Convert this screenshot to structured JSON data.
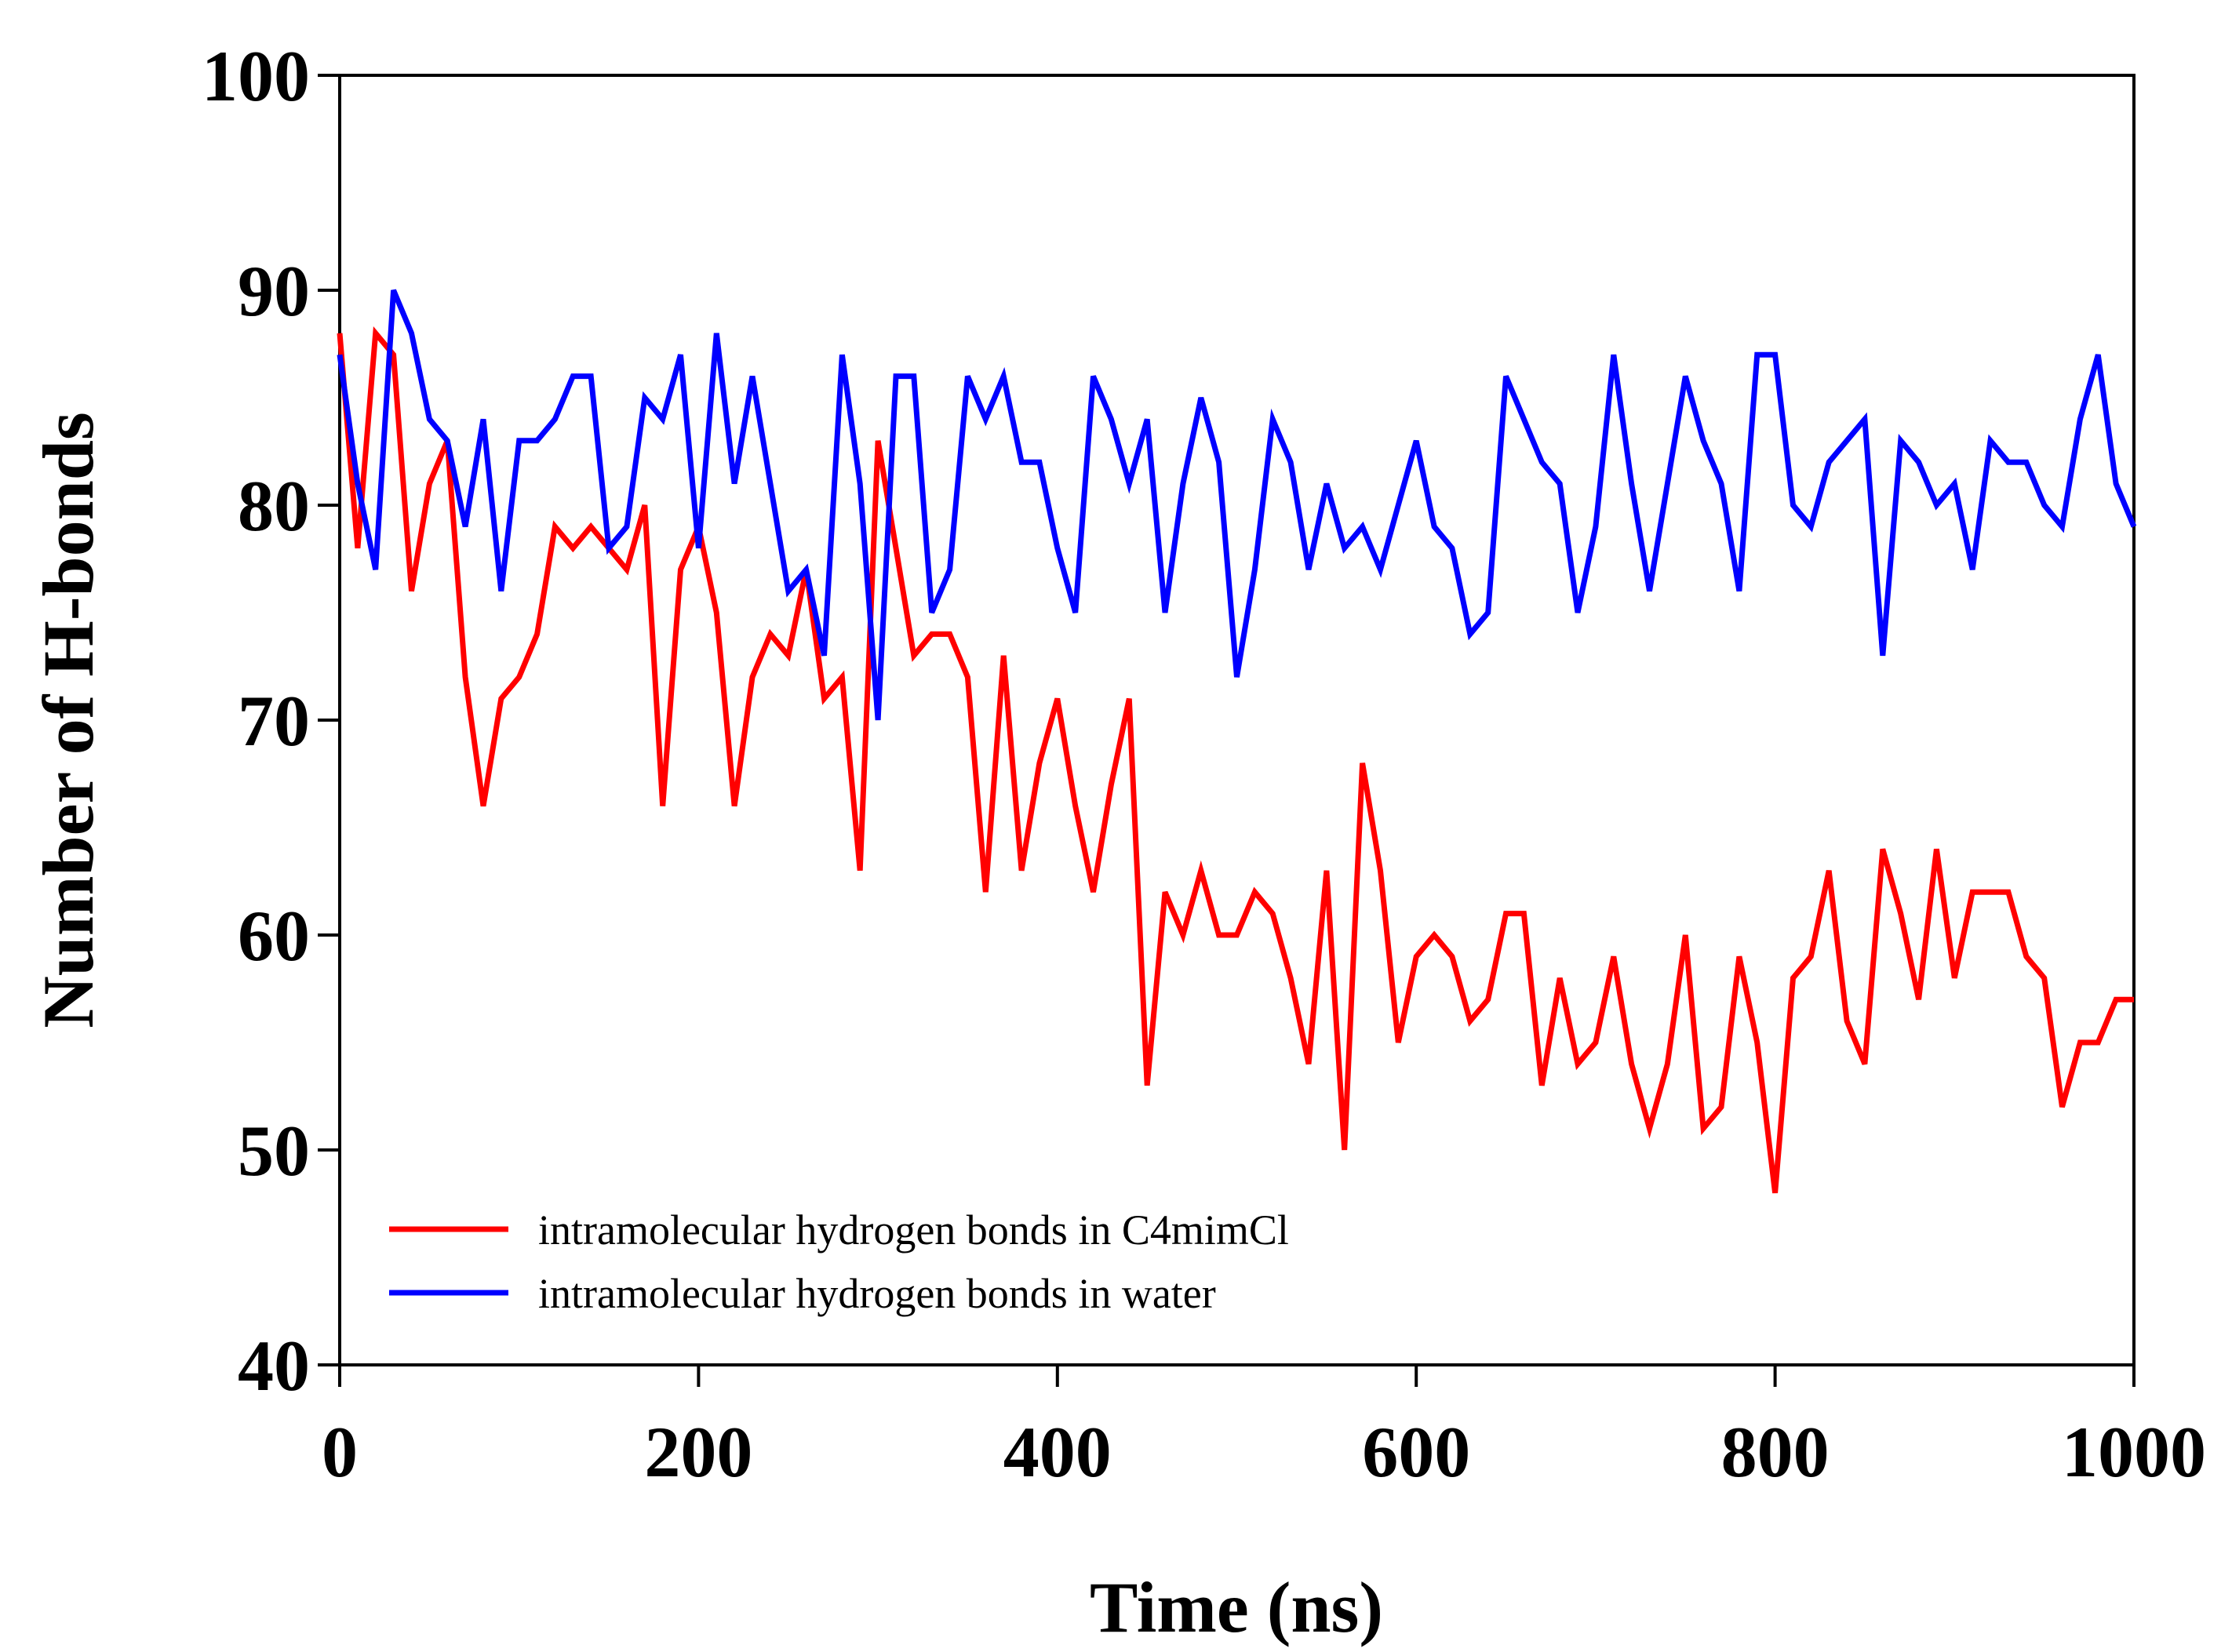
{
  "chart_data": {
    "type": "line",
    "title": "",
    "xlabel": "Time (ns)",
    "ylabel": "Number of H-bonds",
    "xlim": [
      0,
      1000
    ],
    "ylim": [
      40,
      100
    ],
    "xticks": [
      0,
      200,
      400,
      600,
      800,
      1000
    ],
    "yticks": [
      40,
      50,
      60,
      70,
      80,
      90,
      100
    ],
    "xtick_labels": [
      "0",
      "200",
      "400",
      "600",
      "800",
      "1000"
    ],
    "ytick_labels": [
      "40",
      "50",
      "60",
      "70",
      "80",
      "90",
      "100"
    ],
    "grid": false,
    "legend_position": "bottom-left",
    "x": [
      0,
      10,
      20,
      30,
      40,
      50,
      60,
      70,
      80,
      90,
      100,
      110,
      120,
      130,
      140,
      150,
      160,
      170,
      180,
      190,
      200,
      210,
      220,
      230,
      240,
      250,
      260,
      270,
      280,
      290,
      300,
      310,
      320,
      330,
      340,
      350,
      360,
      370,
      380,
      390,
      400,
      410,
      420,
      430,
      440,
      450,
      460,
      470,
      480,
      490,
      500,
      510,
      520,
      530,
      540,
      550,
      560,
      570,
      580,
      590,
      600,
      610,
      620,
      630,
      640,
      650,
      660,
      670,
      680,
      690,
      700,
      710,
      720,
      730,
      740,
      750,
      760,
      770,
      780,
      790,
      800,
      810,
      820,
      830,
      840,
      850,
      860,
      870,
      880,
      890,
      900,
      910,
      920,
      930,
      940,
      950,
      960,
      970,
      980,
      990,
      1000
    ],
    "series": [
      {
        "name": "intramolecular hydrogen bonds  in C4mimCl",
        "color": "#ff0000",
        "values": [
          88,
          78,
          88,
          87,
          76,
          81,
          83,
          72,
          66,
          71,
          72,
          74,
          79,
          78,
          79,
          78,
          77,
          80,
          66,
          77,
          79,
          75,
          66,
          72,
          74,
          73,
          77,
          71,
          72,
          63,
          83,
          78,
          73,
          74,
          74,
          72,
          62,
          73,
          63,
          68,
          71,
          66,
          62,
          67,
          71,
          53,
          62,
          60,
          63,
          60,
          60,
          62,
          61,
          58,
          54,
          63,
          50,
          68,
          63,
          55,
          59,
          60,
          59,
          56,
          57,
          61,
          61,
          53,
          58,
          54,
          55,
          59,
          54,
          51,
          54,
          60,
          51,
          52,
          59,
          55,
          48,
          58,
          59,
          63,
          56,
          54,
          64,
          61,
          57,
          64,
          58,
          62,
          62,
          62,
          59,
          58,
          52,
          55,
          55,
          57,
          57
        ]
      },
      {
        "name": "intramolecular hydrogen bonds  in water",
        "color": "#0000ff",
        "values": [
          87,
          81,
          77,
          90,
          88,
          84,
          83,
          79,
          84,
          76,
          83,
          83,
          84,
          86,
          86,
          78,
          79,
          85,
          84,
          87,
          78,
          88,
          81,
          86,
          81,
          76,
          77,
          73,
          87,
          81,
          70,
          86,
          86,
          75,
          77,
          86,
          84,
          86,
          82,
          82,
          78,
          75,
          86,
          84,
          81,
          84,
          75,
          81,
          85,
          82,
          72,
          77,
          84,
          82,
          77,
          81,
          78,
          79,
          77,
          80,
          83,
          79,
          78,
          74,
          75,
          86,
          84,
          82,
          81,
          75,
          79,
          87,
          81,
          76,
          81,
          86,
          83,
          81,
          76,
          87,
          87,
          80,
          79,
          82,
          83,
          84,
          73,
          83,
          82,
          80,
          81,
          77,
          83,
          82,
          82,
          80,
          79,
          84,
          87,
          81,
          79
        ]
      }
    ]
  }
}
